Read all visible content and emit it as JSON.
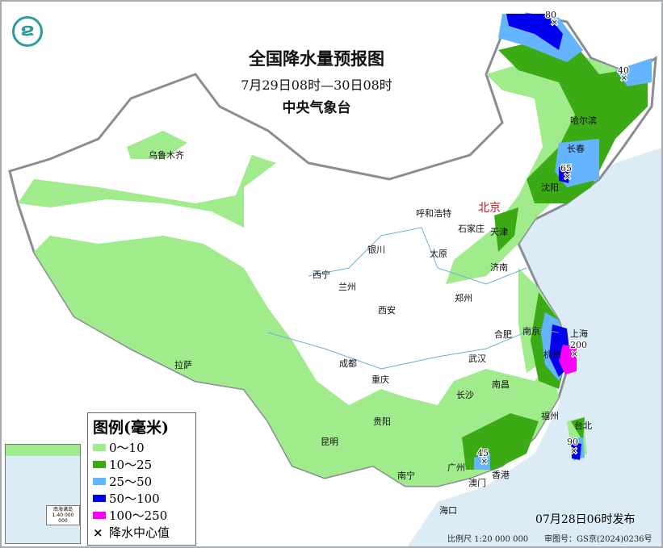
{
  "title": "全国降水量预报图",
  "period": "7月29日08时—30日08时",
  "agency": "中央气象台",
  "issued": "07月28日06时发布",
  "scale": "比例尺 1:20 000 000",
  "review_no": "审图号：GS京(2024)0236号",
  "logo_icon": "cma-logo-icon",
  "legend": {
    "title": "图例(毫米)",
    "items": [
      {
        "label": "0～10",
        "color": "#a0eb8c"
      },
      {
        "label": "10～25",
        "color": "#3caa14"
      },
      {
        "label": "25～50",
        "color": "#64b4ff"
      },
      {
        "label": "50～100",
        "color": "#0000ec"
      },
      {
        "label": "100～250",
        "color": "#fa00fa"
      }
    ],
    "center_label": "降水中心值"
  },
  "capital": "北京",
  "cities": [
    "乌鲁木齐",
    "呼和浩特",
    "天津",
    "石家庄",
    "太原",
    "济南",
    "银川",
    "西宁",
    "兰州",
    "西安",
    "郑州",
    "合肥",
    "南京",
    "上海",
    "杭州",
    "武汉",
    "南昌",
    "长沙",
    "成都",
    "重庆",
    "拉萨",
    "贵阳",
    "昆明",
    "南宁",
    "广州",
    "香港",
    "澳门",
    "福州",
    "台北",
    "海口",
    "哈尔滨",
    "长春",
    "沈阳"
  ],
  "maxima": [
    "80",
    "40",
    "65",
    "200",
    "90",
    "45"
  ],
  "inset": {
    "label": "南海诸岛",
    "scale": "1:40 000 000"
  }
}
